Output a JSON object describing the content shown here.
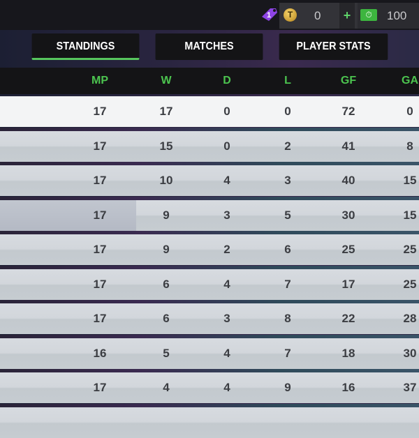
{
  "topbar": {
    "tag_count": "1",
    "coin_icon_letter": "T",
    "coins": "0",
    "plus": "+",
    "cash": "100"
  },
  "tabs": [
    {
      "label": "STANDINGS",
      "active": true
    },
    {
      "label": "MATCHES",
      "active": false
    },
    {
      "label": "PLAYER STATS",
      "active": false
    }
  ],
  "table": {
    "columns": [
      "MP",
      "W",
      "D",
      "L",
      "GF",
      "GA"
    ],
    "rows": [
      [
        "17",
        "17",
        "0",
        "0",
        "72",
        "0"
      ],
      [
        "17",
        "15",
        "0",
        "2",
        "41",
        "8"
      ],
      [
        "17",
        "10",
        "4",
        "3",
        "40",
        "15"
      ],
      [
        "17",
        "9",
        "3",
        "5",
        "30",
        "15"
      ],
      [
        "17",
        "9",
        "2",
        "6",
        "25",
        "25"
      ],
      [
        "17",
        "6",
        "4",
        "7",
        "17",
        "25"
      ],
      [
        "17",
        "6",
        "3",
        "8",
        "22",
        "28"
      ],
      [
        "16",
        "5",
        "4",
        "7",
        "18",
        "30"
      ],
      [
        "17",
        "4",
        "4",
        "9",
        "16",
        "37"
      ]
    ]
  },
  "colors": {
    "accent": "#57c65d",
    "header_text": "#4cc44f",
    "tag": "#8e44e6"
  }
}
